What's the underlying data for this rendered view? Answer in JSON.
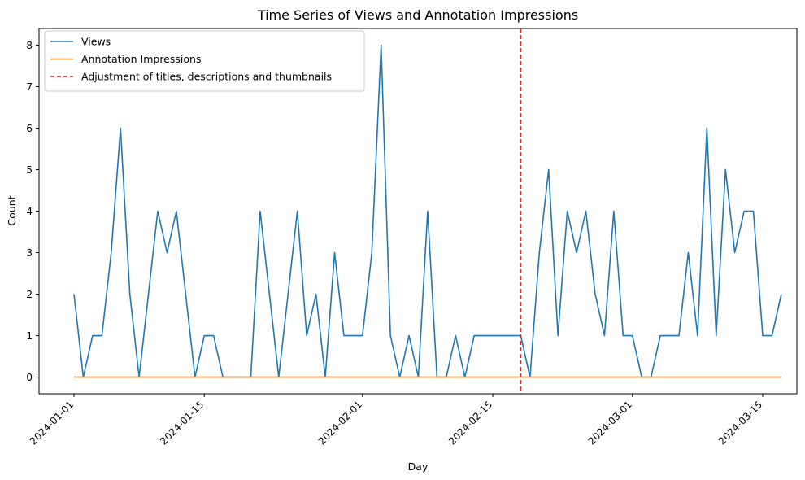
{
  "chart_data": {
    "type": "line",
    "title": "Time Series of Views and Annotation Impressions",
    "xlabel": "Day",
    "ylabel": "Count",
    "x_start": "2024-01-01",
    "x_end": "2024-03-15",
    "ylim": [
      -0.4,
      8.4
    ],
    "yticks": [
      0,
      1,
      2,
      3,
      4,
      5,
      6,
      7,
      8
    ],
    "xticks": [
      "2024-01-01",
      "2024-01-15",
      "2024-02-01",
      "2024-02-15",
      "2024-03-01",
      "2024-03-15"
    ],
    "grid": false,
    "legend_position": "upper-left",
    "series": [
      {
        "name": "Views",
        "color": "#1f77b4",
        "style": "solid",
        "values": [
          2,
          0,
          1,
          1,
          3,
          6,
          2,
          0,
          2,
          4,
          3,
          4,
          2,
          0,
          1,
          1,
          0,
          0,
          0,
          0,
          4,
          2,
          0,
          2,
          4,
          1,
          2,
          0,
          3,
          1,
          1,
          1,
          3,
          8,
          1,
          0,
          1,
          0,
          4,
          0,
          0,
          1,
          0,
          1,
          1,
          1,
          1,
          1,
          1,
          0,
          3,
          5,
          1,
          4,
          3,
          4,
          2,
          1,
          4,
          1,
          1,
          0,
          0,
          1,
          1,
          1,
          3,
          1,
          6,
          1,
          5,
          3,
          4,
          4,
          1,
          1,
          2
        ]
      },
      {
        "name": "Annotation Impressions",
        "color": "#ff7f0e",
        "style": "solid",
        "values": [
          0,
          0,
          0,
          0,
          0,
          0,
          0,
          0,
          0,
          0,
          0,
          0,
          0,
          0,
          0,
          0,
          0,
          0,
          0,
          0,
          0,
          0,
          0,
          0,
          0,
          0,
          0,
          0,
          0,
          0,
          0,
          0,
          0,
          0,
          0,
          0,
          0,
          0,
          0,
          0,
          0,
          0,
          0,
          0,
          0,
          0,
          0,
          0,
          0,
          0,
          0,
          0,
          0,
          0,
          0,
          0,
          0,
          0,
          0,
          0,
          0,
          0,
          0,
          0,
          0,
          0,
          0,
          0,
          0,
          0,
          0,
          0,
          0,
          0,
          0,
          0,
          0
        ]
      }
    ],
    "vline": {
      "name": "Adjustment of titles, descriptions and thumbnails",
      "date": "2024-02-18",
      "color": "#d62728",
      "style": "dashed"
    }
  }
}
